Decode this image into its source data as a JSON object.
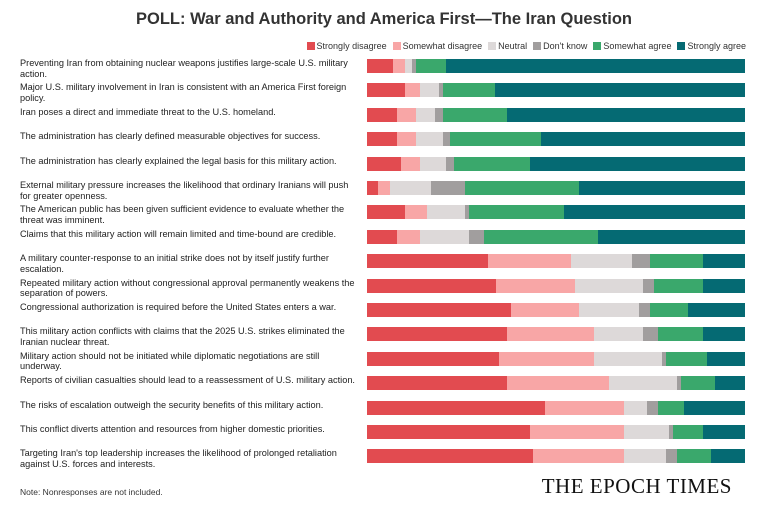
{
  "chart_data": {
    "type": "bar",
    "orientation": "horizontal",
    "stacked": true,
    "unit": "percent",
    "title": "POLL: War and Authority and America First—The Iran Question",
    "legend_placement": "top-right",
    "xlim": [
      0,
      100
    ],
    "categories": [
      "Preventing Iran from obtaining nuclear weapons justifies large-scale U.S. military action.",
      "Major U.S. military involvement in Iran is consistent with an America First foreign policy.",
      "Iran poses a direct and immediate threat to the U.S. homeland.",
      "The administration has clearly defined measurable objectives for success.",
      "The administration has clearly explained the legal basis for this military action.",
      "External military pressure increases the likelihood that ordinary Iranians will push for greater openness.",
      "The American public has been given sufficient evidence to evaluate whether the threat was imminent.",
      "Claims that this military action will remain limited and time-bound are credible.",
      "A military counter-response to an initial strike does not by itself justify further escalation.",
      "Repeated military action without congressional approval permanently weakens the separation of powers.",
      "Congressional authorization is required before the United States enters a war.",
      "This military action conflicts with claims that the 2025 U.S. strikes eliminated the Iranian nuclear threat.",
      "Military action should not be initiated while diplomatic negotiations are still underway.",
      "Reports of civilian casualties should lead to a reassessment of U.S. military action.",
      "The risks of escalation outweigh the security benefits of this military action.",
      "This conflict diverts attention and resources from higher domestic priorities.",
      "Targeting Iran's top leadership increases the likelihood of prolonged retaliation against U.S. forces and interests."
    ],
    "series": [
      {
        "name": "Strongly disagree",
        "color": "#e24b50",
        "values": [
          7,
          10,
          8,
          8,
          9,
          3,
          10,
          8,
          32,
          34,
          38,
          37,
          35,
          37,
          47,
          43,
          44
        ]
      },
      {
        "name": "Somewhat disagree",
        "color": "#f8a6a6",
        "values": [
          3,
          4,
          5,
          5,
          5,
          3,
          6,
          6,
          22,
          21,
          18,
          23,
          25,
          27,
          21,
          25,
          24
        ]
      },
      {
        "name": "Neutral",
        "color": "#ddd9d9",
        "values": [
          2,
          5,
          5,
          7,
          7,
          11,
          10,
          13,
          16,
          18,
          16,
          13,
          18,
          18,
          6,
          12,
          11
        ]
      },
      {
        "name": "Don't know",
        "color": "#a19e9e",
        "values": [
          1,
          1,
          2,
          2,
          2,
          9,
          1,
          4,
          5,
          3,
          3,
          4,
          1,
          1,
          3,
          1,
          3
        ]
      },
      {
        "name": "Somewhat agree",
        "color": "#3aa86c",
        "values": [
          8,
          14,
          17,
          24,
          20,
          30,
          25,
          30,
          14,
          13,
          10,
          12,
          11,
          9,
          7,
          8,
          9
        ]
      },
      {
        "name": "Strongly agree",
        "color": "#056a73",
        "values": [
          79,
          66,
          63,
          54,
          57,
          44,
          48,
          39,
          11,
          11,
          15,
          11,
          10,
          8,
          16,
          11,
          9
        ]
      }
    ]
  },
  "footer": {
    "note": "Note: Nonresponses are not included.",
    "logo": "THE EPOCH TIMES"
  }
}
